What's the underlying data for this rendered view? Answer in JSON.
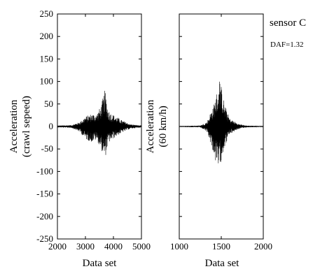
{
  "chart_data": [
    {
      "type": "line",
      "panel": "left",
      "ylabel_line1": "Acceleration",
      "ylabel_line2": "(crawl sepeed)",
      "xlabel": "Data set",
      "xlim": [
        2000,
        5000
      ],
      "ylim": [
        -250,
        250
      ],
      "xticks": [
        2000,
        3000,
        4000,
        5000
      ],
      "yticks": [
        250,
        200,
        150,
        100,
        50,
        0,
        -50,
        -100,
        -150,
        -200,
        -250
      ],
      "series": [
        {
          "envelope_x": [
            2000,
            2500,
            2800,
            3000,
            3200,
            3400,
            3550,
            3650,
            3700,
            3800,
            3900,
            4100,
            4300,
            4600,
            5000
          ],
          "envelope_upper": [
            2,
            3,
            10,
            22,
            28,
            28,
            45,
            70,
            82,
            40,
            30,
            22,
            14,
            5,
            2
          ],
          "envelope_lower": [
            -2,
            -3,
            -12,
            -28,
            -35,
            -30,
            -50,
            -65,
            -72,
            -40,
            -32,
            -22,
            -14,
            -5,
            -2
          ]
        }
      ]
    },
    {
      "type": "line",
      "panel": "right",
      "ylabel_line1": "Acceleration",
      "ylabel_line2": "(60 km/h)",
      "xlabel": "Data set",
      "xlim": [
        1000,
        2000
      ],
      "ylim": [
        -250,
        250
      ],
      "xticks": [
        1000,
        1500,
        2000
      ],
      "series": [
        {
          "envelope_x": [
            1000,
            1250,
            1330,
            1380,
            1420,
            1460,
            1480,
            1500,
            1540,
            1600,
            1700,
            1800,
            2000
          ],
          "envelope_upper": [
            1,
            2,
            10,
            35,
            55,
            85,
            108,
            90,
            50,
            18,
            6,
            2,
            1
          ],
          "envelope_lower": [
            -1,
            -2,
            -12,
            -40,
            -70,
            -100,
            -90,
            -75,
            -45,
            -18,
            -6,
            -2,
            -1
          ]
        }
      ]
    }
  ],
  "annotation": {
    "sensor": "sensor C",
    "daf": "DAF=1.32"
  }
}
